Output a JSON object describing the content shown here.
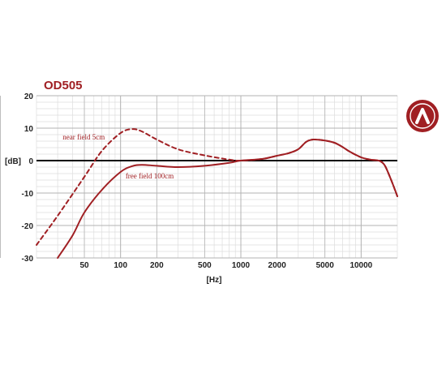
{
  "colors": {
    "accent": "#a01f23",
    "major_grid": "#b3b3b3",
    "minor_grid": "#dddddd",
    "zero_line": "#000000",
    "text": "#222222"
  },
  "logo": {
    "icon": "brand-logo-icon"
  },
  "chart_data": {
    "type": "line",
    "title": "OD505",
    "xlabel": "[Hz]",
    "ylabel": "[dB]",
    "x_scale": "log",
    "xlim": [
      20,
      20000
    ],
    "ylim": [
      -30,
      20
    ],
    "grid": true,
    "x_ticks": [
      {
        "value": 50,
        "label": "50"
      },
      {
        "value": 100,
        "label": "100"
      },
      {
        "value": 200,
        "label": "200"
      },
      {
        "value": 500,
        "label": "500"
      },
      {
        "value": 1000,
        "label": "1000"
      },
      {
        "value": 2000,
        "label": "2000"
      },
      {
        "value": 5000,
        "label": "5000"
      },
      {
        "value": 10000,
        "label": "10000"
      }
    ],
    "y_ticks": [
      {
        "value": 20,
        "label": "20"
      },
      {
        "value": 10,
        "label": "10"
      },
      {
        "value": 0,
        "label": "0"
      },
      {
        "value": -10,
        "label": "-10"
      },
      {
        "value": -20,
        "label": "-20"
      },
      {
        "value": -30,
        "label": "-30"
      }
    ],
    "series": [
      {
        "name": "near field 5cm",
        "style": "dashed",
        "points": [
          [
            20,
            -26
          ],
          [
            30,
            -17
          ],
          [
            50,
            -5
          ],
          [
            70,
            3
          ],
          [
            100,
            8.5
          ],
          [
            125,
            9.7
          ],
          [
            150,
            9
          ],
          [
            200,
            6.5
          ],
          [
            300,
            3.5
          ],
          [
            500,
            1.6
          ],
          [
            800,
            0.3
          ],
          [
            1000,
            0
          ],
          [
            1500,
            0.5
          ],
          [
            2000,
            1.5
          ],
          [
            2500,
            2.3
          ],
          [
            3000,
            3.5
          ],
          [
            3500,
            5.8
          ],
          [
            4000,
            6.5
          ],
          [
            5000,
            6.2
          ],
          [
            6000,
            5.5
          ],
          [
            7000,
            4.2
          ],
          [
            8000,
            2.8
          ],
          [
            10000,
            1
          ],
          [
            12000,
            0.3
          ],
          [
            14000,
            0
          ],
          [
            15000,
            -0.6
          ],
          [
            16000,
            -2
          ],
          [
            18000,
            -6.5
          ],
          [
            20000,
            -11
          ]
        ]
      },
      {
        "name": "free field 100cm",
        "style": "solid",
        "points": [
          [
            30,
            -30
          ],
          [
            40,
            -23
          ],
          [
            50,
            -16
          ],
          [
            70,
            -9
          ],
          [
            100,
            -3.5
          ],
          [
            125,
            -1.7
          ],
          [
            150,
            -1.3
          ],
          [
            200,
            -1.6
          ],
          [
            300,
            -2
          ],
          [
            500,
            -1.6
          ],
          [
            800,
            -0.7
          ],
          [
            1000,
            0
          ],
          [
            1500,
            0.5
          ],
          [
            2000,
            1.5
          ],
          [
            2500,
            2.3
          ],
          [
            3000,
            3.5
          ],
          [
            3500,
            5.8
          ],
          [
            4000,
            6.5
          ],
          [
            5000,
            6.2
          ],
          [
            6000,
            5.5
          ],
          [
            7000,
            4.2
          ],
          [
            8000,
            2.8
          ],
          [
            10000,
            1
          ],
          [
            12000,
            0.3
          ],
          [
            14000,
            0
          ],
          [
            15000,
            -0.6
          ],
          [
            16000,
            -2
          ],
          [
            18000,
            -6.5
          ],
          [
            20000,
            -11
          ]
        ]
      }
    ],
    "annotations": [
      {
        "text": "near field 5cm",
        "series": "near field 5cm",
        "at": [
          33,
          6.5
        ]
      },
      {
        "text": "free field 100cm",
        "series": "free field 100cm",
        "at": [
          110,
          -5.5
        ]
      }
    ]
  }
}
